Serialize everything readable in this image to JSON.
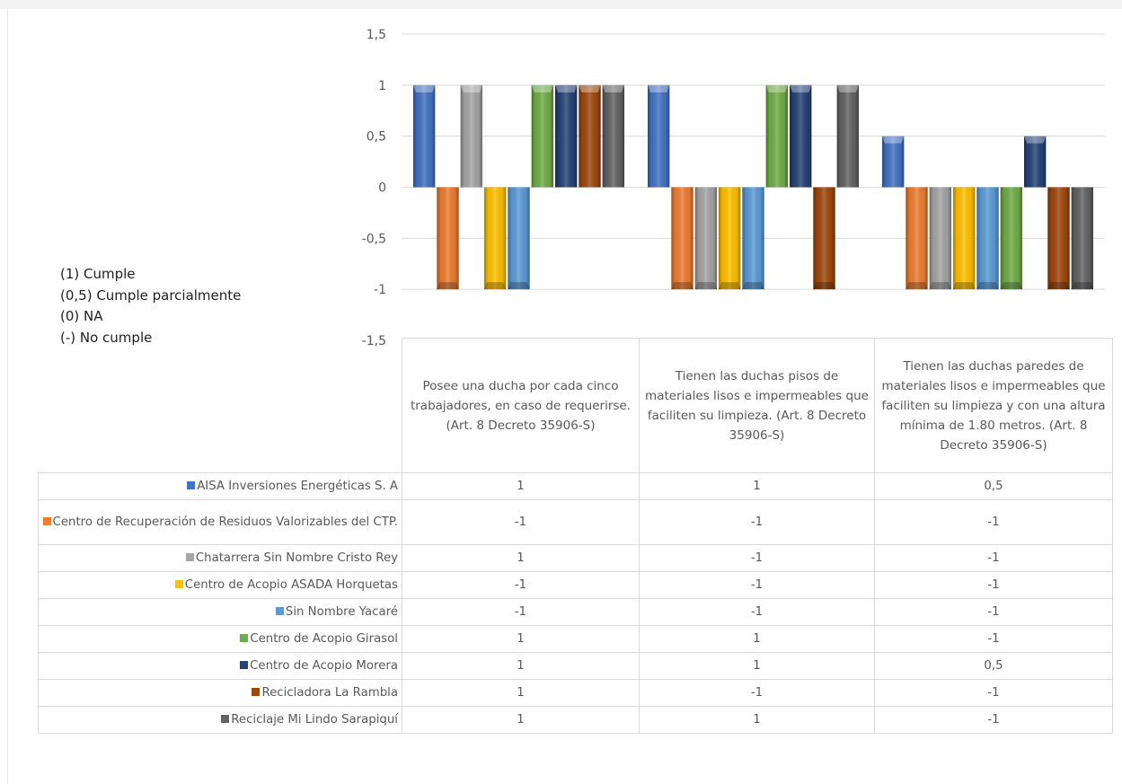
{
  "notes": [
    "(1) Cumple",
    "(0,5) Cumple parcialmente",
    "(0) NA",
    "(-) No cumple"
  ],
  "chart_data": {
    "type": "bar",
    "ylim": [
      -1.5,
      1.5
    ],
    "y_ticks": [
      "1,5",
      "1",
      "0,5",
      "0",
      "-0,5",
      "-1",
      "-1,5"
    ],
    "categories": [
      "Posee una ducha por cada cinco trabajadores, en caso de requerirse.    (Art. 8 Decreto 35906-S)",
      "Tienen las duchas pisos de materiales lisos e impermeables que faciliten su limpieza. (Art. 8 Decreto 35906-S)",
      "Tienen las duchas paredes de materiales lisos e impermeables que faciliten su limpieza y con una altura mínima de 1.80 metros. (Art. 8 Decreto 35906-S)"
    ],
    "series": [
      {
        "name": "AISA Inversiones Energéticas S. A",
        "color": "#4472c4",
        "values": [
          1,
          1,
          0.5
        ],
        "labels": [
          "1",
          "1",
          "0,5"
        ]
      },
      {
        "name": "Centro de Recuperación de Residuos Valorizables del CTP.",
        "color": "#ed7d31",
        "values": [
          -1,
          -1,
          -1
        ],
        "labels": [
          "-1",
          "-1",
          "-1"
        ]
      },
      {
        "name": "Chatarrera Sin Nombre Cristo Rey",
        "color": "#a5a5a5",
        "values": [
          1,
          -1,
          -1
        ],
        "labels": [
          "1",
          "-1",
          "-1"
        ]
      },
      {
        "name": "Centro de Acopio ASADA Horquetas",
        "color": "#ffc000",
        "values": [
          -1,
          -1,
          -1
        ],
        "labels": [
          "-1",
          "-1",
          "-1"
        ]
      },
      {
        "name": "Sin Nombre Yacaré",
        "color": "#5b9bd5",
        "values": [
          -1,
          -1,
          -1
        ],
        "labels": [
          "-1",
          "-1",
          "-1"
        ]
      },
      {
        "name": "Centro de Acopio Girasol",
        "color": "#70ad47",
        "values": [
          1,
          1,
          -1
        ],
        "labels": [
          "1",
          "1",
          "-1"
        ]
      },
      {
        "name": "Centro de Acopio Morera",
        "color": "#264478",
        "values": [
          1,
          1,
          0.5
        ],
        "labels": [
          "1",
          "1",
          "0,5"
        ]
      },
      {
        "name": "Recicladora La Rambla",
        "color": "#9e480e",
        "values": [
          1,
          -1,
          -1
        ],
        "labels": [
          "1",
          "-1",
          "-1"
        ]
      },
      {
        "name": "Reciclaje Mi Lindo Sarapiquí",
        "color": "#636363",
        "values": [
          1,
          1,
          -1
        ],
        "labels": [
          "1",
          "1",
          "-1"
        ]
      }
    ],
    "grid": true
  }
}
